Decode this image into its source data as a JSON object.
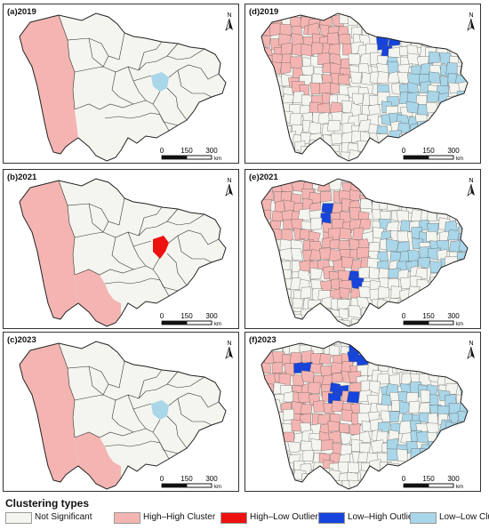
{
  "panels": [
    {
      "id": "a",
      "title": "(a)2019",
      "type": "simple",
      "blue": true,
      "red": false,
      "pinkSouth": false
    },
    {
      "id": "b",
      "title": "(b)2021",
      "type": "simple",
      "blue": false,
      "red": true,
      "pinkSouth": true
    },
    {
      "id": "c",
      "title": "(c)2023",
      "type": "simple",
      "blue": true,
      "red": false,
      "pinkSouth": true
    },
    {
      "id": "d",
      "title": "(d)2019",
      "type": "county",
      "variant": 1
    },
    {
      "id": "e",
      "title": "(e)2021",
      "type": "county",
      "variant": 2
    },
    {
      "id": "f",
      "title": "(f)2023",
      "type": "county",
      "variant": 3
    }
  ],
  "north_label": "N",
  "scale": {
    "ticks": [
      "0",
      "150",
      "300"
    ],
    "unit": "km"
  },
  "legend": {
    "title": "Clustering types",
    "items": [
      {
        "label": "Not Significant",
        "color": "#f4f5ef"
      },
      {
        "label": "High–High Cluster",
        "color": "#f4b5b2"
      },
      {
        "label": "High–Low Outlier",
        "color": "#ee1111"
      },
      {
        "label": "Low–High Outlier",
        "color": "#1644dd"
      },
      {
        "label": "Low–Low Cluster",
        "color": "#a9d6e8"
      }
    ]
  }
}
